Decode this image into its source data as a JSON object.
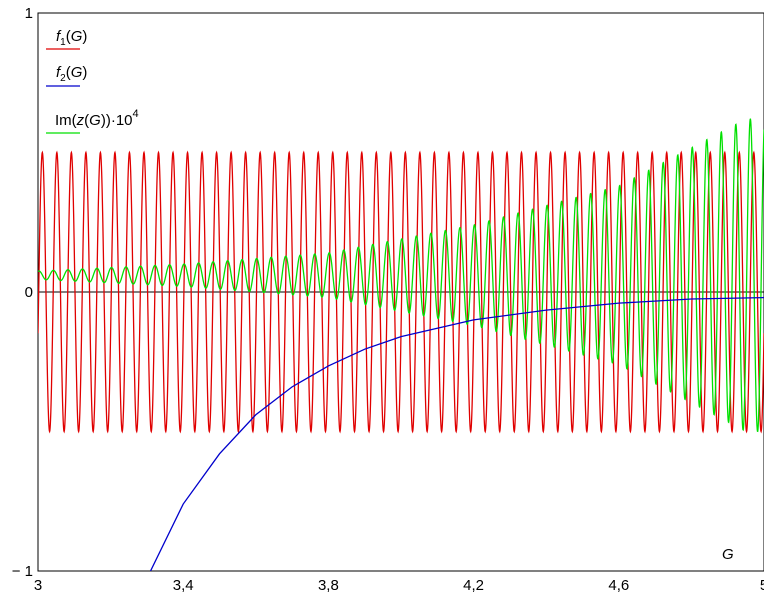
{
  "chart_data": {
    "type": "line",
    "title": "",
    "xlabel": "G",
    "ylabel": "",
    "xlim": [
      3,
      5
    ],
    "ylim": [
      -1,
      1
    ],
    "grid": false,
    "legend_position": "top-left",
    "x_ticks": [
      {
        "value": 3.0,
        "label": "3"
      },
      {
        "value": 3.4,
        "label": "3,4"
      },
      {
        "value": 3.8,
        "label": "3,8"
      },
      {
        "value": 4.2,
        "label": "4,2"
      },
      {
        "value": 4.6,
        "label": "4,6"
      },
      {
        "value": 5.0,
        "label": "5"
      }
    ],
    "y_ticks": [
      {
        "value": 1,
        "label": "1"
      },
      {
        "value": 0,
        "label": "0"
      },
      {
        "value": -1,
        "label": "− 1"
      }
    ],
    "zero_line": true,
    "series": [
      {
        "name": "f1(G)",
        "legend": {
          "base": "f",
          "sub": "1",
          "args": "(G)"
        },
        "color": "#e00000",
        "model": "oscillation",
        "amplitude": 0.5,
        "oscillations_visible": 50,
        "description_points": {
          "x": [
            3.0,
            3.5,
            4.0,
            4.5,
            5.0
          ],
          "y_envelope": [
            0.5,
            0.5,
            0.5,
            0.5,
            0.5
          ]
        }
      },
      {
        "name": "f2(G)",
        "legend": {
          "base": "f",
          "sub": "2",
          "args": "(G)"
        },
        "color": "#0000cc",
        "x": [
          3.31,
          3.4,
          3.5,
          3.6,
          3.7,
          3.8,
          3.9,
          4.0,
          4.2,
          4.4,
          4.6,
          4.8,
          5.0
        ],
        "y": [
          -1.0,
          -0.76,
          -0.58,
          -0.44,
          -0.34,
          -0.265,
          -0.205,
          -0.16,
          -0.1,
          -0.065,
          -0.04,
          -0.025,
          -0.02
        ]
      },
      {
        "name": "Im(z(G))·10^4",
        "legend": {
          "prefix": "Im(",
          "italic": "z",
          "mid": "(",
          "italic2": "G",
          "suffix": "))·10",
          "sup": "4"
        },
        "color": "#00e000",
        "model": "growing-oscillation",
        "baseline": 0.06,
        "envelope_x": [
          3.0,
          3.4,
          3.8,
          4.2,
          4.6,
          4.95
        ],
        "envelope_amp": [
          0.015,
          0.04,
          0.08,
          0.18,
          0.32,
          0.56
        ]
      }
    ]
  }
}
